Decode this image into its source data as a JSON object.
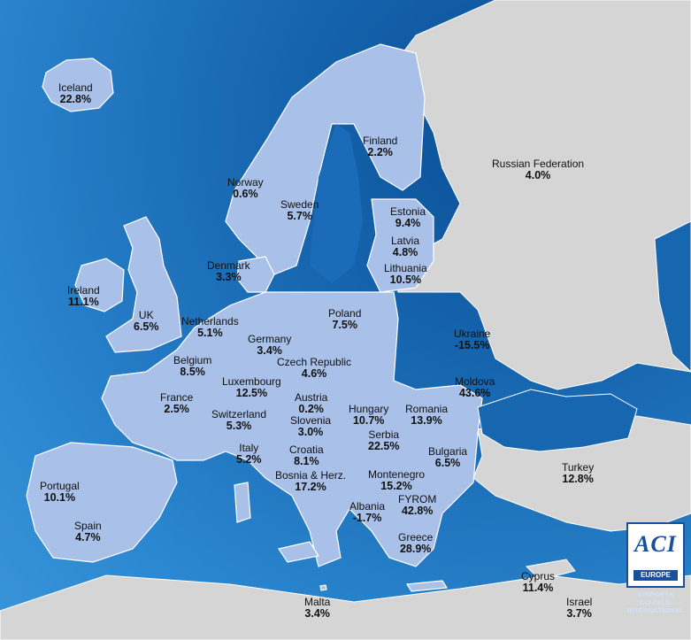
{
  "map": {
    "colors": {
      "sea": "#1766b0",
      "highlighted_country": "#a9c0e8",
      "other_land": "#d5d5d5",
      "border": "#ffffff"
    },
    "countries": [
      {
        "name": "Iceland",
        "value": "22.8%"
      },
      {
        "name": "Norway",
        "value": "0.6%"
      },
      {
        "name": "Sweden",
        "value": "5.7%"
      },
      {
        "name": "Finland",
        "value": "2.2%"
      },
      {
        "name": "Russian Federation",
        "value": "4.0%"
      },
      {
        "name": "Estonia",
        "value": "9.4%"
      },
      {
        "name": "Latvia",
        "value": "4.8%"
      },
      {
        "name": "Lithuania",
        "value": "10.5%"
      },
      {
        "name": "Denmark",
        "value": "3.3%"
      },
      {
        "name": "Ireland",
        "value": "11.1%"
      },
      {
        "name": "UK",
        "value": "6.5%"
      },
      {
        "name": "Netherlands",
        "value": "5.1%"
      },
      {
        "name": "Poland",
        "value": "7.5%"
      },
      {
        "name": "Germany",
        "value": "3.4%"
      },
      {
        "name": "Belgium",
        "value": "8.5%"
      },
      {
        "name": "Czech Republic",
        "value": "4.6%"
      },
      {
        "name": "Luxembourg",
        "value": "12.5%"
      },
      {
        "name": "Ukraine",
        "value": "-15.5%"
      },
      {
        "name": "Moldova",
        "value": "43.6%"
      },
      {
        "name": "France",
        "value": "2.5%"
      },
      {
        "name": "Austria",
        "value": "0.2%"
      },
      {
        "name": "Hungary",
        "value": "10.7%"
      },
      {
        "name": "Romania",
        "value": "13.9%"
      },
      {
        "name": "Switzerland",
        "value": "5.3%"
      },
      {
        "name": "Slovenia",
        "value": "3.0%"
      },
      {
        "name": "Serbia",
        "value": "22.5%"
      },
      {
        "name": "Italy",
        "value": "5.2%"
      },
      {
        "name": "Croatia",
        "value": "8.1%"
      },
      {
        "name": "Bulgaria",
        "value": "6.5%"
      },
      {
        "name": "Bosnia & Herz.",
        "value": "17.2%"
      },
      {
        "name": "Montenegro",
        "value": "15.2%"
      },
      {
        "name": "Turkey",
        "value": "12.8%"
      },
      {
        "name": "Portugal",
        "value": "10.1%"
      },
      {
        "name": "FYROM",
        "value": "42.8%"
      },
      {
        "name": "Albania",
        "value": "-1.7%"
      },
      {
        "name": "Spain",
        "value": "4.7%"
      },
      {
        "name": "Greece",
        "value": "28.9%"
      },
      {
        "name": "Cyprus",
        "value": "11.4%"
      },
      {
        "name": "Malta",
        "value": "3.4%"
      },
      {
        "name": "Israel",
        "value": "3.7%"
      }
    ]
  },
  "logo": {
    "text": "ACI",
    "region": "EUROPE",
    "org_line1": "AIRPORTS COUNCIL",
    "org_line2": "INTERNATIONAL"
  }
}
